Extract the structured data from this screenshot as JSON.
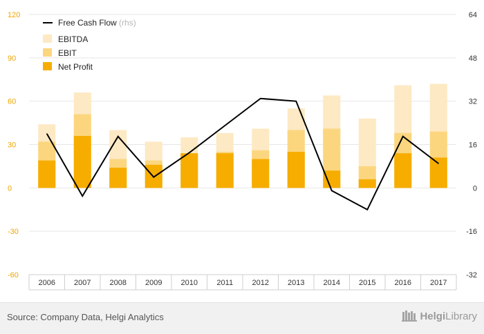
{
  "chart_data": {
    "type": "bar",
    "stacked": "overlay",
    "categories": [
      "2006",
      "2007",
      "2008",
      "2009",
      "2010",
      "2011",
      "2012",
      "2013",
      "2014",
      "2015",
      "2016",
      "2017"
    ],
    "series": [
      {
        "name": "EBITDA",
        "type": "bar",
        "axis": "left",
        "color": "#fde9c3",
        "values": [
          44,
          66,
          40,
          32,
          35,
          38,
          41,
          55,
          64,
          48,
          71,
          72
        ]
      },
      {
        "name": "EBIT",
        "type": "bar",
        "axis": "left",
        "color": "#fcd67f",
        "values": [
          32,
          51,
          20,
          19,
          23,
          25,
          26,
          40,
          41,
          15,
          38,
          39
        ]
      },
      {
        "name": "Net Profit",
        "type": "bar",
        "axis": "left",
        "color": "#f6ad00",
        "values": [
          19,
          36,
          14,
          16,
          24,
          24,
          20,
          25,
          12,
          6,
          24,
          21
        ]
      },
      {
        "name": "Free Cash Flow",
        "legend_suffix": "(rhs)",
        "type": "line",
        "axis": "right",
        "color": "#000000",
        "values": [
          20,
          -3,
          19,
          4,
          13,
          23,
          33,
          32,
          -1,
          -8,
          19,
          9
        ]
      }
    ],
    "left_axis": {
      "min": -60,
      "max": 120,
      "ticks": [
        "120",
        "90",
        "60",
        "30",
        "0",
        "-30",
        "-60"
      ],
      "tick_values": [
        120,
        90,
        60,
        30,
        0,
        -30,
        -60
      ],
      "color": "#f0a500"
    },
    "right_axis": {
      "min": -32,
      "max": 64,
      "ticks": [
        "64",
        "48",
        "32",
        "16",
        "0",
        "-16",
        "-32"
      ],
      "tick_values": [
        64,
        48,
        32,
        16,
        0,
        -16,
        -32
      ],
      "color": "#333333"
    },
    "grid": true,
    "legend_position": "top-left"
  },
  "footer": {
    "source": "Source: Company Data, Helgi Analytics",
    "brand_bold": "Helgi",
    "brand_rest": "Library"
  }
}
